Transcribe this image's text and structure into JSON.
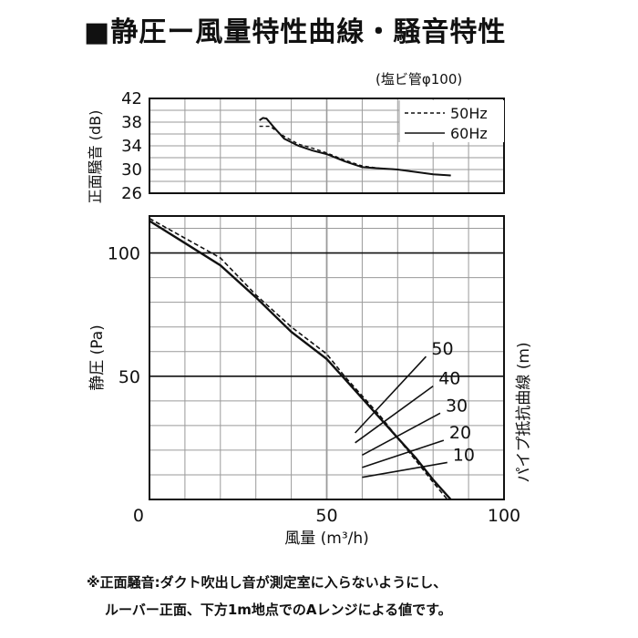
{
  "chart_data": [
    {
      "type": "line",
      "title": "■静圧ー風量特性曲線・騒音特性",
      "subtitle": "(塩ビ管φ100)",
      "xlabel": "",
      "ylabel": "正面騒音 (dB)",
      "xlim": [
        0,
        100
      ],
      "ylim": [
        26,
        42
      ],
      "yticks": [
        "42",
        "38",
        "34",
        "30",
        "26"
      ],
      "legend_position": "top-right",
      "grid": true,
      "series": [
        {
          "name": "50Hz",
          "style": "dashed",
          "x": [
            31,
            34,
            38,
            42,
            46,
            50,
            55,
            60,
            65,
            70,
            75,
            80,
            85
          ],
          "y": [
            37.3,
            37.3,
            35.6,
            34.3,
            33.6,
            32.8,
            31.6,
            30.6,
            30.2,
            30.0,
            29.6,
            29.2,
            29.0
          ]
        },
        {
          "name": "60Hz",
          "style": "solid",
          "x": [
            31,
            32,
            33,
            35,
            38,
            42,
            46,
            50,
            55,
            60,
            65,
            70,
            75,
            80,
            85
          ],
          "y": [
            38.3,
            38.7,
            38.6,
            37.2,
            35.2,
            34.0,
            33.2,
            32.6,
            31.4,
            30.4,
            30.2,
            30.0,
            29.6,
            29.2,
            29.0
          ]
        }
      ]
    },
    {
      "type": "line",
      "xlabel": "風量 (m³/h)",
      "ylabel": "静圧 (Pa)",
      "y2label": "パイプ抵抗曲線 (m)",
      "xlim": [
        0,
        100
      ],
      "ylim": [
        0,
        115
      ],
      "xticks": [
        "0",
        "50",
        "100"
      ],
      "yticks": [
        "100",
        "50"
      ],
      "grid": true,
      "series": [
        {
          "name": "50Hz",
          "style": "dashed",
          "x": [
            0,
            10,
            20,
            30,
            40,
            50,
            55,
            60,
            65,
            70,
            75,
            80,
            84
          ],
          "y": [
            114,
            106,
            98,
            83,
            70,
            59,
            50,
            42,
            34,
            25,
            16,
            7,
            0
          ]
        },
        {
          "name": "60Hz",
          "style": "solid",
          "x": [
            0,
            10,
            20,
            30,
            40,
            50,
            55,
            60,
            65,
            70,
            75,
            80,
            85
          ],
          "y": [
            113,
            104,
            95,
            82,
            68,
            57,
            49,
            41,
            33,
            25,
            17,
            8,
            0
          ]
        }
      ],
      "pipe_resistance": [
        {
          "label": "50",
          "x": [
            58,
            78
          ],
          "y": [
            27,
            58
          ]
        },
        {
          "label": "40",
          "x": [
            58,
            80
          ],
          "y": [
            23,
            46
          ]
        },
        {
          "label": "30",
          "x": [
            60,
            82
          ],
          "y": [
            18,
            35
          ]
        },
        {
          "label": "20",
          "x": [
            60,
            83
          ],
          "y": [
            13,
            24
          ]
        },
        {
          "label": "10",
          "x": [
            60,
            84
          ],
          "y": [
            9,
            15
          ]
        }
      ]
    }
  ],
  "footnote": {
    "line1": "※正面騒音:ダクト吹出し音が測定室に入らないようにし、",
    "line2": "ルーバー正面、下方1m地点でのAレンジによる値です。"
  },
  "colors": {
    "line": "#111111",
    "grid": "#9a9a9a",
    "axis": "#111111",
    "background": "#ffffff"
  }
}
